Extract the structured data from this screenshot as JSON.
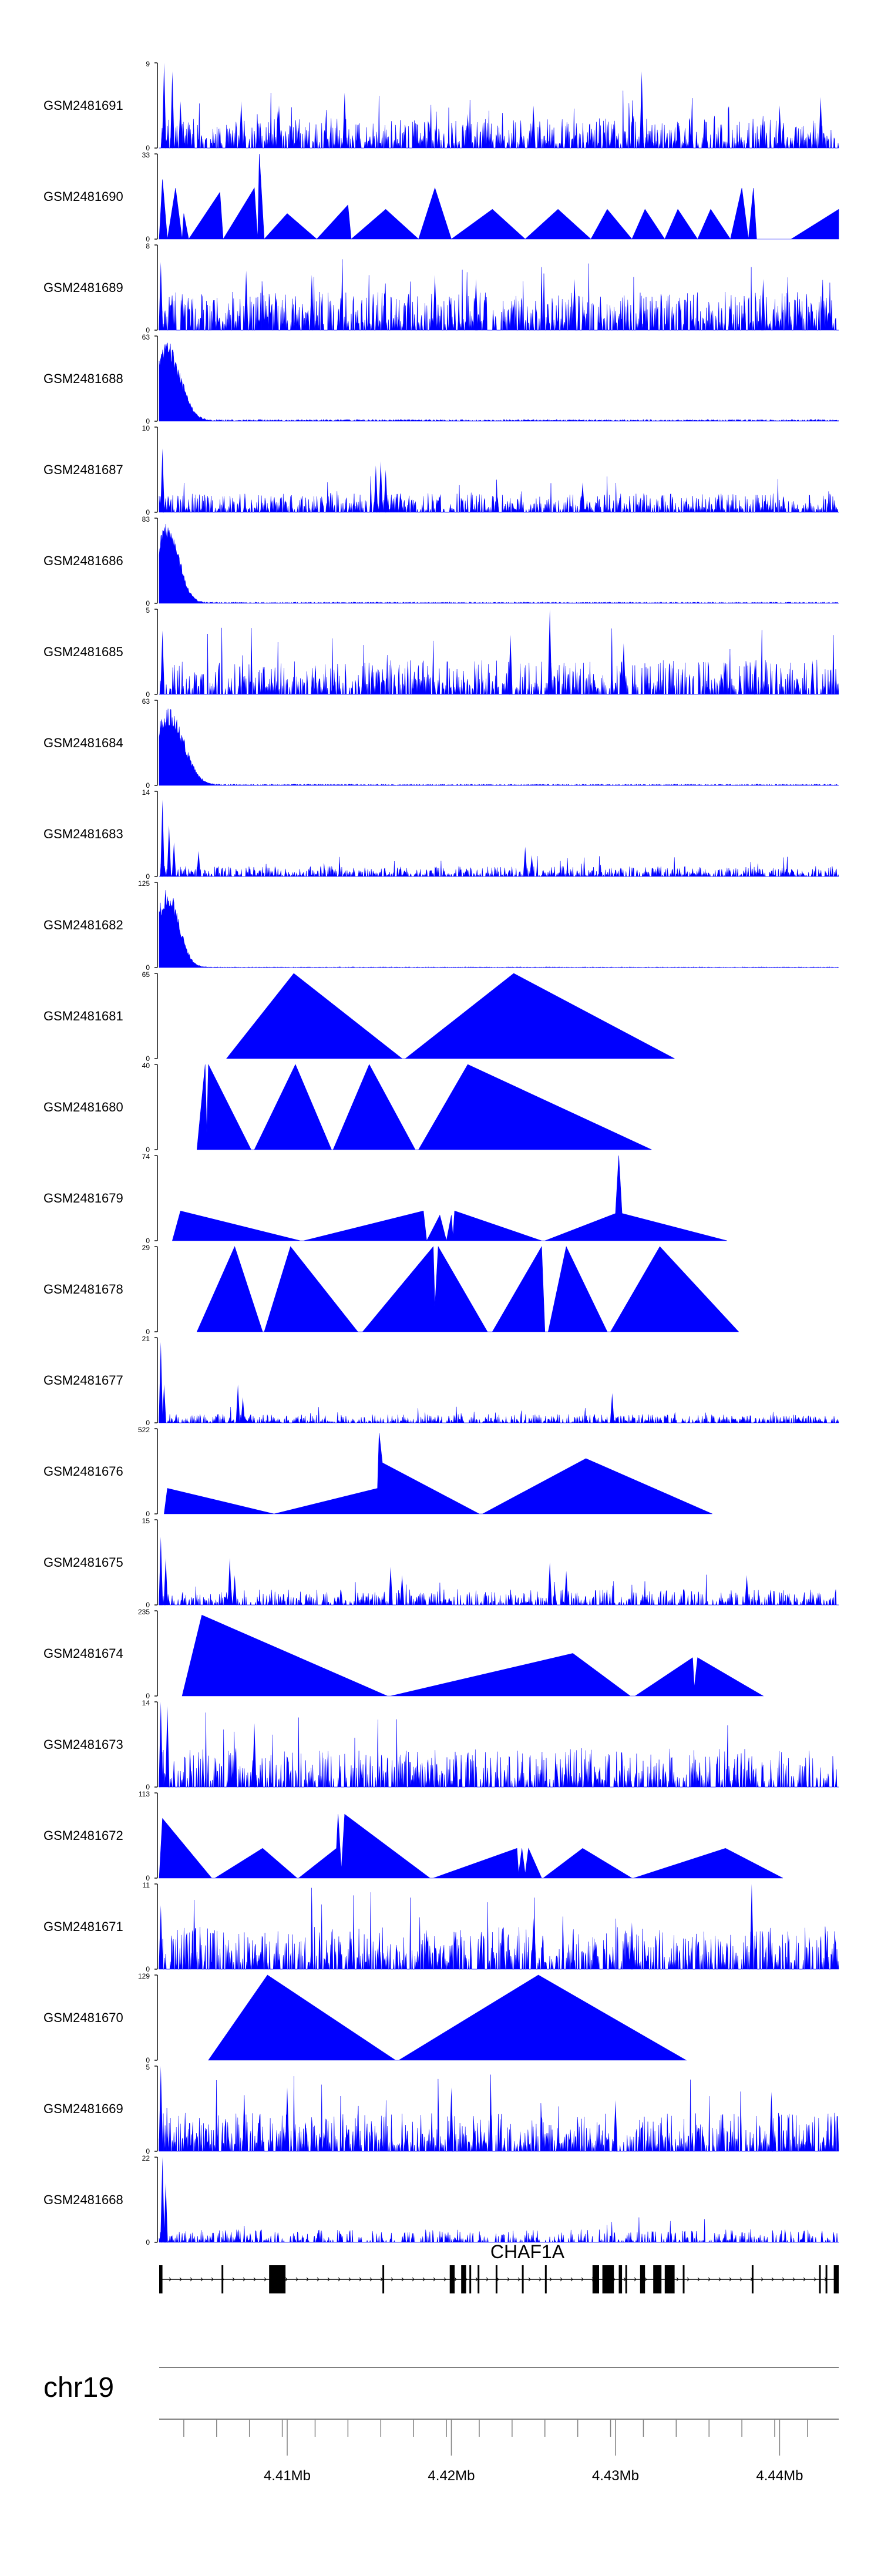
{
  "chart_data": {
    "type": "area",
    "title": "",
    "colors": {
      "fill": "#0000ff",
      "axis": "#000000",
      "frame": "#808080",
      "gene": "#000000"
    },
    "x_axis": {
      "chrom_label": "chr19",
      "range": [
        4.4022,
        4.4436
      ],
      "unit": "Mb",
      "tick_labels": [
        "4.41Mb",
        "4.42Mb",
        "4.43Mb",
        "4.44Mb"
      ],
      "major_ticks": [
        4.41,
        4.42,
        4.43,
        4.44
      ],
      "minor_ticks": [
        4.4037,
        4.4057,
        4.4077,
        4.4097,
        4.4117,
        4.4137,
        4.4157,
        4.4177,
        4.4197,
        4.4217,
        4.4237,
        4.4257,
        4.4277,
        4.4297,
        4.4317,
        4.4337,
        4.4357,
        4.4377,
        4.4397,
        4.4417
      ]
    },
    "tracks": [
      {
        "name": "GSM2481691",
        "ymax": "9",
        "ymin": "0",
        "pattern": "noise",
        "density": 1.0,
        "level": 0.35,
        "spikes": [
          [
            4.4025,
            1.0
          ],
          [
            4.403,
            0.9
          ],
          [
            4.4035,
            0.55
          ],
          [
            4.4072,
            0.55
          ],
          [
            4.4095,
            0.5
          ],
          [
            4.4135,
            0.65
          ],
          [
            4.421,
            0.4
          ],
          [
            4.425,
            0.5
          ],
          [
            4.4316,
            0.9
          ],
          [
            4.44,
            0.5
          ],
          [
            4.4425,
            0.6
          ]
        ]
      },
      {
        "name": "GSM2481690",
        "ymax": "33",
        "ymin": "0",
        "pattern": "sparse_tri",
        "points": [
          [
            4.4022,
            0
          ],
          [
            4.4024,
            0.7
          ],
          [
            4.4027,
            0
          ],
          [
            4.4032,
            0.6
          ],
          [
            4.4036,
            0
          ],
          [
            4.4037,
            0.3
          ],
          [
            4.404,
            0
          ],
          [
            4.4059,
            0.55
          ],
          [
            4.4061,
            0
          ],
          [
            4.408,
            0.6
          ],
          [
            4.4082,
            0
          ],
          [
            4.4083,
            1.0
          ],
          [
            4.4086,
            0
          ],
          [
            4.41,
            0.3
          ],
          [
            4.4118,
            0
          ],
          [
            4.4137,
            0.4
          ],
          [
            4.4139,
            0
          ],
          [
            4.416,
            0.35
          ],
          [
            4.418,
            0
          ],
          [
            4.419,
            0.6
          ],
          [
            4.42,
            0
          ],
          [
            4.4225,
            0.35
          ],
          [
            4.4245,
            0
          ],
          [
            4.4265,
            0.35
          ],
          [
            4.4285,
            0
          ],
          [
            4.4295,
            0.35
          ],
          [
            4.431,
            0
          ],
          [
            4.4318,
            0.35
          ],
          [
            4.433,
            0
          ],
          [
            4.4338,
            0.35
          ],
          [
            4.435,
            0
          ],
          [
            4.4358,
            0.35
          ],
          [
            4.437,
            0
          ],
          [
            4.4377,
            0.6
          ],
          [
            4.4381,
            0
          ],
          [
            4.4384,
            0.6
          ],
          [
            4.4386,
            0
          ],
          [
            4.4407,
            0
          ],
          [
            4.4436,
            0.35
          ]
        ]
      },
      {
        "name": "GSM2481689",
        "ymax": "8",
        "ymin": "0",
        "pattern": "noise",
        "density": 1.0,
        "level": 0.45,
        "spikes": [
          [
            4.4023,
            0.8
          ],
          [
            4.4075,
            0.7
          ],
          [
            4.4115,
            0.65
          ],
          [
            4.419,
            0.65
          ],
          [
            4.4215,
            0.6
          ],
          [
            4.4275,
            0.6
          ],
          [
            4.439,
            0.6
          ]
        ]
      },
      {
        "name": "GSM2481688",
        "ymax": "63",
        "ymin": "0",
        "pattern": "peak",
        "center": 4.4027,
        "width": 0.0008,
        "height": 0.92,
        "baseline": 0.02
      },
      {
        "name": "GSM2481687",
        "ymax": "10",
        "ymin": "0",
        "pattern": "noise",
        "density": 1.0,
        "level": 0.22,
        "spikes": [
          [
            4.4024,
            0.75
          ],
          [
            4.4154,
            0.55
          ],
          [
            4.4157,
            0.6
          ],
          [
            4.416,
            0.5
          ],
          [
            4.428,
            0.35
          ]
        ]
      },
      {
        "name": "GSM2481686",
        "ymax": "83",
        "ymin": "0",
        "pattern": "peak",
        "center": 4.4027,
        "width": 0.0007,
        "height": 0.95,
        "baseline": 0.015
      },
      {
        "name": "GSM2481685",
        "ymax": "5",
        "ymin": "0",
        "pattern": "noise",
        "density": 0.95,
        "level": 0.4,
        "spikes": [
          [
            4.4024,
            0.75
          ],
          [
            4.426,
            1.0
          ],
          [
            4.4236,
            0.7
          ],
          [
            4.4305,
            0.6
          ],
          [
            4.4385,
            0.4
          ],
          [
            4.442,
            0.4
          ]
        ]
      },
      {
        "name": "GSM2481684",
        "ymax": "63",
        "ymin": "0",
        "pattern": "peak",
        "center": 4.4028,
        "width": 0.0009,
        "height": 0.9,
        "baseline": 0.015
      },
      {
        "name": "GSM2481683",
        "ymax": "14",
        "ymin": "0",
        "pattern": "noise",
        "density": 1.0,
        "level": 0.12,
        "spikes": [
          [
            4.4024,
            0.9
          ],
          [
            4.4028,
            0.6
          ],
          [
            4.4031,
            0.4
          ],
          [
            4.4046,
            0.3
          ],
          [
            4.4245,
            0.35
          ],
          [
            4.4249,
            0.25
          ]
        ]
      },
      {
        "name": "GSM2481682",
        "ymax": "125",
        "ymin": "0",
        "pattern": "peak",
        "center": 4.4027,
        "width": 0.0007,
        "height": 0.93,
        "baseline": 0.008
      },
      {
        "name": "GSM2481681",
        "ymax": "65",
        "ymin": "0",
        "pattern": "sparse_tri",
        "points": [
          [
            4.4063,
            0
          ],
          [
            4.4104,
            1.0
          ],
          [
            4.417,
            0
          ],
          [
            4.4172,
            0
          ],
          [
            4.4238,
            1.0
          ],
          [
            4.4336,
            0
          ]
        ]
      },
      {
        "name": "GSM2481680",
        "ymax": "40",
        "ymin": "0",
        "pattern": "sparse_tri",
        "points": [
          [
            4.4045,
            0
          ],
          [
            4.405,
            1.0
          ],
          [
            4.4051,
            0.2
          ],
          [
            4.4052,
            1.0
          ],
          [
            4.4078,
            0
          ],
          [
            4.408,
            0
          ],
          [
            4.4105,
            1.0
          ],
          [
            4.4127,
            0
          ],
          [
            4.4128,
            0
          ],
          [
            4.415,
            1.0
          ],
          [
            4.4178,
            0
          ],
          [
            4.418,
            0
          ],
          [
            4.421,
            1.0
          ],
          [
            4.4322,
            0
          ]
        ]
      },
      {
        "name": "GSM2481679",
        "ymax": "74",
        "ymin": "0",
        "pattern": "sparse_tri",
        "points": [
          [
            4.403,
            0
          ],
          [
            4.4035,
            0.35
          ],
          [
            4.4108,
            0
          ],
          [
            4.411,
            0
          ],
          [
            4.4183,
            0.35
          ],
          [
            4.4185,
            0
          ],
          [
            4.4193,
            0.3
          ],
          [
            4.4197,
            0
          ],
          [
            4.42,
            0.3
          ],
          [
            4.4201,
            0.05
          ],
          [
            4.4202,
            0.35
          ],
          [
            4.4255,
            0
          ],
          [
            4.4257,
            0
          ],
          [
            4.43,
            0.32
          ],
          [
            4.4302,
            1.0
          ],
          [
            4.4304,
            0.32
          ],
          [
            4.4368,
            0
          ]
        ]
      },
      {
        "name": "GSM2481678",
        "ymax": "29",
        "ymin": "0",
        "pattern": "sparse_tri",
        "points": [
          [
            4.4045,
            0
          ],
          [
            4.4068,
            1.0
          ],
          [
            4.4085,
            0
          ],
          [
            4.4086,
            0
          ],
          [
            4.4102,
            1.0
          ],
          [
            4.4143,
            0
          ],
          [
            4.4146,
            0
          ],
          [
            4.4189,
            1.0
          ],
          [
            4.419,
            0.3
          ],
          [
            4.4192,
            1.0
          ],
          [
            4.4222,
            0
          ],
          [
            4.4225,
            0
          ],
          [
            4.4255,
            1.0
          ],
          [
            4.4257,
            0
          ],
          [
            4.4259,
            0
          ],
          [
            4.427,
            1.0
          ],
          [
            4.4295,
            0
          ],
          [
            4.4297,
            0
          ],
          [
            4.4327,
            1.0
          ],
          [
            4.4375,
            0
          ]
        ]
      },
      {
        "name": "GSM2481677",
        "ymax": "21",
        "ymin": "0",
        "pattern": "noise",
        "density": 0.9,
        "level": 0.1,
        "spikes": [
          [
            4.4023,
            0.95
          ],
          [
            4.4025,
            0.45
          ],
          [
            4.407,
            0.45
          ],
          [
            4.4073,
            0.3
          ],
          [
            4.4298,
            0.35
          ]
        ]
      },
      {
        "name": "GSM2481676",
        "ymax": "522",
        "ymin": "0",
        "pattern": "sparse_tri",
        "points": [
          [
            4.4025,
            0
          ],
          [
            4.4027,
            0.3
          ],
          [
            4.4092,
            0
          ],
          [
            4.4155,
            0.3
          ],
          [
            4.4156,
            0.95
          ],
          [
            4.4158,
            0.6
          ],
          [
            4.4217,
            0
          ],
          [
            4.4219,
            0
          ],
          [
            4.4282,
            0.65
          ],
          [
            4.4359,
            0
          ]
        ]
      },
      {
        "name": "GSM2481675",
        "ymax": "15",
        "ymin": "0",
        "pattern": "noise",
        "density": 0.8,
        "level": 0.18,
        "spikes": [
          [
            4.4023,
            0.8
          ],
          [
            4.4026,
            0.55
          ],
          [
            4.4065,
            0.55
          ],
          [
            4.4068,
            0.35
          ],
          [
            4.4163,
            0.45
          ],
          [
            4.417,
            0.35
          ],
          [
            4.426,
            0.5
          ],
          [
            4.427,
            0.4
          ],
          [
            4.438,
            0.35
          ]
        ]
      },
      {
        "name": "GSM2481674",
        "ymax": "235",
        "ymin": "0",
        "pattern": "sparse_tri",
        "points": [
          [
            4.4036,
            0
          ],
          [
            4.4048,
            0.95
          ],
          [
            4.4161,
            0
          ],
          [
            4.4163,
            0
          ],
          [
            4.4274,
            0.5
          ],
          [
            4.4309,
            0
          ],
          [
            4.4312,
            0
          ],
          [
            4.4347,
            0.45
          ],
          [
            4.4348,
            0.1
          ],
          [
            4.435,
            0.45
          ],
          [
            4.439,
            0
          ]
        ]
      },
      {
        "name": "GSM2481673",
        "ymax": "14",
        "ymin": "0",
        "pattern": "noise",
        "density": 0.85,
        "level": 0.45,
        "spikes": [
          [
            4.4023,
            1.0
          ],
          [
            4.4027,
            0.95
          ],
          [
            4.408,
            0.75
          ]
        ]
      },
      {
        "name": "GSM2481672",
        "ymax": "113",
        "ymin": "0",
        "pattern": "sparse_tri",
        "points": [
          [
            4.4022,
            0
          ],
          [
            4.4024,
            0.7
          ],
          [
            4.4054,
            0
          ],
          [
            4.4056,
            0
          ],
          [
            4.4085,
            0.35
          ],
          [
            4.4106,
            0
          ],
          [
            4.4107,
            0
          ],
          [
            4.413,
            0.35
          ],
          [
            4.4131,
            0.75
          ],
          [
            4.4133,
            0.1
          ],
          [
            4.4135,
            0.75
          ],
          [
            4.4187,
            0
          ],
          [
            4.4189,
            0
          ],
          [
            4.424,
            0.35
          ],
          [
            4.4241,
            0.05
          ],
          [
            4.4243,
            0.35
          ],
          [
            4.4245,
            0.05
          ],
          [
            4.4247,
            0.35
          ],
          [
            4.4255,
            0
          ],
          [
            4.4256,
            0
          ],
          [
            4.428,
            0.35
          ],
          [
            4.431,
            0
          ],
          [
            4.4311,
            0
          ],
          [
            4.4367,
            0.35
          ],
          [
            4.4402,
            0
          ]
        ]
      },
      {
        "name": "GSM2481671",
        "ymax": "11",
        "ymin": "0",
        "pattern": "noise",
        "density": 0.9,
        "level": 0.5,
        "spikes": [
          [
            4.4383,
            1.0
          ],
          [
            4.4023,
            0.75
          ],
          [
            4.425,
            0.6
          ],
          [
            4.431,
            0.55
          ]
        ]
      },
      {
        "name": "GSM2481670",
        "ymax": "129",
        "ymin": "0",
        "pattern": "sparse_tri",
        "points": [
          [
            4.4052,
            0
          ],
          [
            4.4088,
            1.0
          ],
          [
            4.4166,
            0
          ],
          [
            4.4168,
            0
          ],
          [
            4.4253,
            1.0
          ],
          [
            4.4343,
            0
          ]
        ]
      },
      {
        "name": "GSM2481669",
        "ymax": "5",
        "ymin": "0",
        "pattern": "noise",
        "density": 1.0,
        "level": 0.45,
        "spikes": [
          [
            4.4023,
            1.0
          ],
          [
            4.41,
            0.75
          ],
          [
            4.42,
            0.75
          ],
          [
            4.43,
            0.6
          ],
          [
            4.4395,
            0.7
          ]
        ]
      },
      {
        "name": "GSM2481668",
        "ymax": "22",
        "ymin": "0",
        "pattern": "noise",
        "density": 0.7,
        "level": 0.15,
        "spikes": [
          [
            4.4024,
            1.0
          ],
          [
            4.4026,
            0.7
          ]
        ]
      }
    ],
    "gene": {
      "name": "CHAF1A",
      "strand": "+",
      "exons": [
        [
          4.4022,
          4.4024
        ],
        [
          4.406,
          4.4061
        ],
        [
          4.4089,
          4.4099
        ],
        [
          4.4158,
          4.4159
        ],
        [
          4.4199,
          4.4202
        ],
        [
          4.4206,
          4.4209
        ],
        [
          4.4211,
          4.4212
        ],
        [
          4.4216,
          4.4217
        ],
        [
          4.4227,
          4.4228
        ],
        [
          4.4243,
          4.4244
        ],
        [
          4.4257,
          4.4258
        ],
        [
          4.4286,
          4.429
        ],
        [
          4.4292,
          4.4299
        ],
        [
          4.4302,
          4.4304
        ],
        [
          4.4306,
          4.4307
        ],
        [
          4.4315,
          4.4318
        ],
        [
          4.4323,
          4.4328
        ],
        [
          4.433,
          4.4336
        ],
        [
          4.4341,
          4.4342
        ],
        [
          4.4383,
          4.4384
        ],
        [
          4.4424,
          4.4425
        ],
        [
          4.4428,
          4.4429
        ],
        [
          4.4433,
          4.4436
        ]
      ]
    }
  }
}
